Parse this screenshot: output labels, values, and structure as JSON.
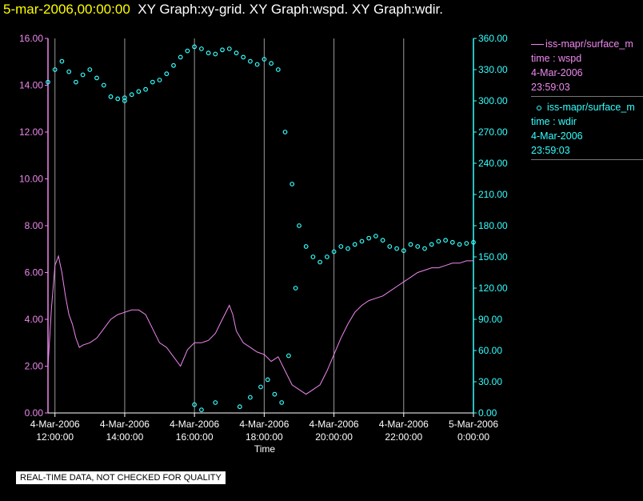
{
  "header": {
    "timestamp": "5-mar-2006,00:00:00",
    "graphs": "XY Graph:xy-grid.  XY Graph:wspd.  XY Graph:wdir."
  },
  "notice": "REAL-TIME DATA, NOT CHECKED FOR QUALITY",
  "legend": [
    {
      "symbol": "line",
      "name": "iss-mapr/surface_m",
      "var": "time : wspd",
      "date": "4-Mar-2006",
      "time": "23:59:03",
      "color": "#ee88ee"
    },
    {
      "symbol": "circle",
      "name": "iss-mapr/surface_m",
      "var": "time : wdir",
      "date": "4-Mar-2006",
      "time": "23:59:03",
      "color": "#33ffff"
    }
  ],
  "chart_data": {
    "type": "line",
    "xlabel": "Time",
    "x_range_hours": [
      11.8,
      24.0
    ],
    "x_ticks": [
      {
        "hour": 12,
        "date": "4-Mar-2006",
        "time": "12:00:00"
      },
      {
        "hour": 14,
        "date": "4-Mar-2006",
        "time": "14:00:00"
      },
      {
        "hour": 16,
        "date": "4-Mar-2006",
        "time": "16:00:00"
      },
      {
        "hour": 18,
        "date": "4-Mar-2006",
        "time": "18:00:00"
      },
      {
        "hour": 20,
        "date": "4-Mar-2006",
        "time": "20:00:00"
      },
      {
        "hour": 22,
        "date": "4-Mar-2006",
        "time": "22:00:00"
      },
      {
        "hour": 24,
        "date": "5-Mar-2006",
        "time": "0:00:00"
      }
    ],
    "grid": "vertical",
    "y_left": {
      "range": [
        0,
        16
      ],
      "ticks": [
        "0.00",
        "2.00",
        "4.00",
        "6.00",
        "8.00",
        "10.00",
        "12.00",
        "14.00",
        "16.00"
      ],
      "color": "#ee88ee"
    },
    "y_right": {
      "range": [
        0,
        360
      ],
      "ticks": [
        "0.00",
        "30.00",
        "60.00",
        "90.00",
        "120.00",
        "150.00",
        "180.00",
        "210.00",
        "240.00",
        "270.00",
        "300.00",
        "330.00",
        "360.00"
      ],
      "color": "#33ffff"
    },
    "series": [
      {
        "var": "wspd",
        "style": "line",
        "axis": "left",
        "color": "#ee88ee",
        "points": [
          [
            11.8,
            2.0
          ],
          [
            11.9,
            4.5
          ],
          [
            12.0,
            6.3
          ],
          [
            12.1,
            6.7
          ],
          [
            12.2,
            6.0
          ],
          [
            12.3,
            5.0
          ],
          [
            12.4,
            4.2
          ],
          [
            12.5,
            3.8
          ],
          [
            12.6,
            3.2
          ],
          [
            12.7,
            2.8
          ],
          [
            12.8,
            2.9
          ],
          [
            13.0,
            3.0
          ],
          [
            13.2,
            3.2
          ],
          [
            13.4,
            3.6
          ],
          [
            13.6,
            4.0
          ],
          [
            13.8,
            4.2
          ],
          [
            14.0,
            4.3
          ],
          [
            14.2,
            4.4
          ],
          [
            14.4,
            4.4
          ],
          [
            14.6,
            4.2
          ],
          [
            14.8,
            3.6
          ],
          [
            15.0,
            3.0
          ],
          [
            15.2,
            2.8
          ],
          [
            15.4,
            2.4
          ],
          [
            15.6,
            2.0
          ],
          [
            15.8,
            2.7
          ],
          [
            16.0,
            3.0
          ],
          [
            16.2,
            3.0
          ],
          [
            16.4,
            3.1
          ],
          [
            16.6,
            3.4
          ],
          [
            16.8,
            4.0
          ],
          [
            17.0,
            4.6
          ],
          [
            17.1,
            4.2
          ],
          [
            17.2,
            3.5
          ],
          [
            17.4,
            3.0
          ],
          [
            17.6,
            2.8
          ],
          [
            17.8,
            2.6
          ],
          [
            18.0,
            2.5
          ],
          [
            18.2,
            2.2
          ],
          [
            18.4,
            2.4
          ],
          [
            18.6,
            1.8
          ],
          [
            18.8,
            1.2
          ],
          [
            19.0,
            1.0
          ],
          [
            19.2,
            0.8
          ],
          [
            19.4,
            1.0
          ],
          [
            19.6,
            1.2
          ],
          [
            19.8,
            1.8
          ],
          [
            20.0,
            2.5
          ],
          [
            20.2,
            3.2
          ],
          [
            20.4,
            3.8
          ],
          [
            20.6,
            4.3
          ],
          [
            20.8,
            4.6
          ],
          [
            21.0,
            4.8
          ],
          [
            21.2,
            4.9
          ],
          [
            21.4,
            5.0
          ],
          [
            21.6,
            5.2
          ],
          [
            21.8,
            5.4
          ],
          [
            22.0,
            5.6
          ],
          [
            22.2,
            5.8
          ],
          [
            22.4,
            6.0
          ],
          [
            22.6,
            6.1
          ],
          [
            22.8,
            6.2
          ],
          [
            23.0,
            6.2
          ],
          [
            23.2,
            6.3
          ],
          [
            23.4,
            6.4
          ],
          [
            23.6,
            6.4
          ],
          [
            23.8,
            6.5
          ],
          [
            24.0,
            6.5
          ]
        ]
      },
      {
        "var": "wdir",
        "style": "circle",
        "axis": "right",
        "color": "#33ffff",
        "points": [
          [
            11.8,
            318
          ],
          [
            12.0,
            330
          ],
          [
            12.2,
            338
          ],
          [
            12.4,
            328
          ],
          [
            12.6,
            318
          ],
          [
            12.8,
            325
          ],
          [
            13.0,
            330
          ],
          [
            13.2,
            322
          ],
          [
            13.4,
            315
          ],
          [
            13.6,
            304
          ],
          [
            13.8,
            302
          ],
          [
            14.0,
            303
          ],
          [
            14.2,
            306
          ],
          [
            14.4,
            309
          ],
          [
            14.6,
            311
          ],
          [
            14.8,
            318
          ],
          [
            15.0,
            320
          ],
          [
            15.2,
            326
          ],
          [
            15.4,
            334
          ],
          [
            15.6,
            342
          ],
          [
            15.8,
            348
          ],
          [
            16.0,
            352
          ],
          [
            16.2,
            350
          ],
          [
            16.4,
            346
          ],
          [
            16.6,
            345
          ],
          [
            16.8,
            349
          ],
          [
            17.0,
            350
          ],
          [
            17.2,
            346
          ],
          [
            17.4,
            342
          ],
          [
            17.6,
            338
          ],
          [
            17.8,
            335
          ],
          [
            18.0,
            340
          ],
          [
            18.2,
            336
          ],
          [
            18.4,
            330
          ],
          [
            18.6,
            270
          ],
          [
            18.8,
            220
          ],
          [
            19.0,
            180
          ],
          [
            19.2,
            160
          ],
          [
            19.4,
            150
          ],
          [
            19.6,
            145
          ],
          [
            19.8,
            150
          ],
          [
            20.0,
            155
          ],
          [
            20.2,
            160
          ],
          [
            20.4,
            158
          ],
          [
            20.6,
            162
          ],
          [
            20.8,
            165
          ],
          [
            21.0,
            168
          ],
          [
            21.2,
            170
          ],
          [
            21.4,
            166
          ],
          [
            21.6,
            160
          ],
          [
            21.8,
            158
          ],
          [
            22.0,
            156
          ],
          [
            22.2,
            162
          ],
          [
            22.4,
            160
          ],
          [
            22.6,
            158
          ],
          [
            22.8,
            162
          ],
          [
            23.0,
            165
          ],
          [
            23.2,
            166
          ],
          [
            23.4,
            164
          ],
          [
            23.6,
            162
          ],
          [
            23.8,
            163
          ],
          [
            24.0,
            164
          ],
          [
            16.0,
            8
          ],
          [
            16.2,
            3
          ],
          [
            16.6,
            10
          ],
          [
            17.3,
            6
          ],
          [
            17.6,
            15
          ],
          [
            17.9,
            25
          ],
          [
            18.1,
            32
          ],
          [
            18.3,
            18
          ],
          [
            18.5,
            10
          ],
          [
            18.7,
            55
          ],
          [
            18.9,
            120
          ],
          [
            14.0,
            300
          ]
        ]
      }
    ]
  }
}
